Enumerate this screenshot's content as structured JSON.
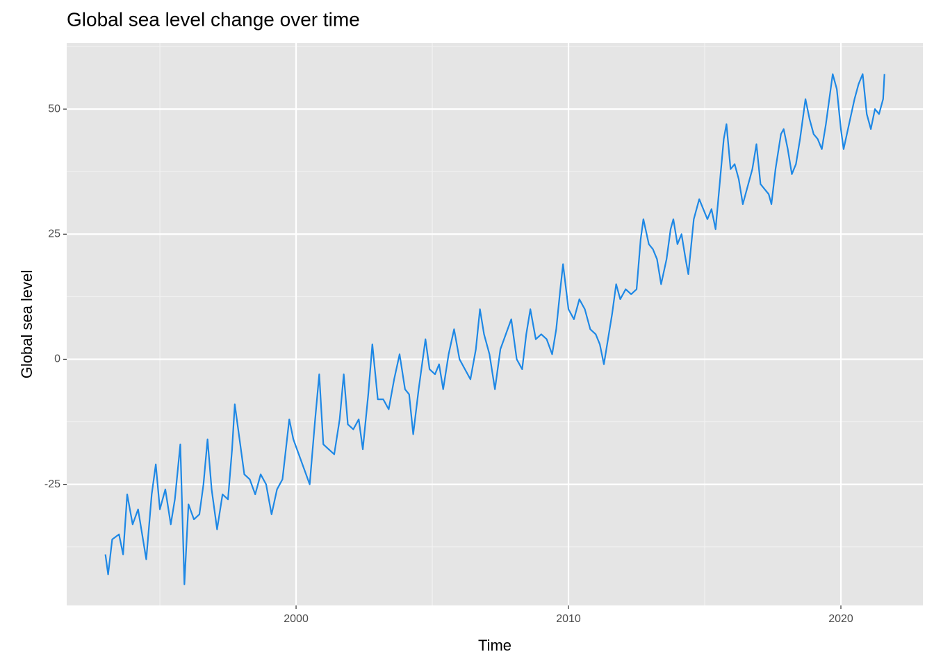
{
  "chart_data": {
    "type": "line",
    "title": "Global sea level change over time",
    "x_label": "Time",
    "y_label": "Global sea level",
    "x": [
      1993.0,
      1993.1,
      1993.25,
      1993.5,
      1993.65,
      1993.8,
      1994.0,
      1994.2,
      1994.35,
      1994.5,
      1994.7,
      1994.85,
      1995.0,
      1995.2,
      1995.4,
      1995.55,
      1995.75,
      1995.9,
      1996.05,
      1996.25,
      1996.45,
      1996.6,
      1996.75,
      1996.9,
      1997.1,
      1997.3,
      1997.5,
      1997.65,
      1997.75,
      1997.95,
      1998.1,
      1998.3,
      1998.5,
      1998.7,
      1998.9,
      1999.1,
      1999.3,
      1999.5,
      1999.75,
      1999.9,
      2000.1,
      2000.3,
      2000.5,
      2000.7,
      2000.85,
      2001.0,
      2001.2,
      2001.4,
      2001.6,
      2001.75,
      2001.9,
      2002.1,
      2002.3,
      2002.45,
      2002.65,
      2002.8,
      2003.0,
      2003.2,
      2003.4,
      2003.6,
      2003.8,
      2004.0,
      2004.15,
      2004.3,
      2004.5,
      2004.75,
      2004.9,
      2005.1,
      2005.25,
      2005.4,
      2005.6,
      2005.8,
      2006.0,
      2006.2,
      2006.4,
      2006.6,
      2006.75,
      2006.9,
      2007.1,
      2007.3,
      2007.5,
      2007.7,
      2007.9,
      2008.1,
      2008.3,
      2008.45,
      2008.6,
      2008.8,
      2009.0,
      2009.2,
      2009.4,
      2009.55,
      2009.7,
      2009.8,
      2010.0,
      2010.2,
      2010.4,
      2010.6,
      2010.8,
      2011.0,
      2011.15,
      2011.3,
      2011.45,
      2011.6,
      2011.75,
      2011.9,
      2012.1,
      2012.3,
      2012.5,
      2012.65,
      2012.75,
      2012.95,
      2013.1,
      2013.25,
      2013.4,
      2013.6,
      2013.75,
      2013.85,
      2014.0,
      2014.15,
      2014.3,
      2014.4,
      2014.6,
      2014.8,
      2014.95,
      2015.1,
      2015.25,
      2015.4,
      2015.55,
      2015.7,
      2015.8,
      2015.95,
      2016.1,
      2016.25,
      2016.4,
      2016.6,
      2016.75,
      2016.9,
      2017.05,
      2017.2,
      2017.35,
      2017.45,
      2017.6,
      2017.8,
      2017.9,
      2018.05,
      2018.2,
      2018.35,
      2018.5,
      2018.7,
      2018.85,
      2019.0,
      2019.15,
      2019.3,
      2019.45,
      2019.6,
      2019.7,
      2019.85,
      2020.0,
      2020.1,
      2020.3,
      2020.5,
      2020.65,
      2020.8,
      2020.95,
      2021.1,
      2021.25,
      2021.4,
      2021.55,
      2021.6
    ],
    "series": [
      {
        "color": "#1e88e5",
        "values": [
          -39,
          -43,
          -36,
          -35,
          -39,
          -27,
          -33,
          -30,
          -35,
          -40,
          -27,
          -21,
          -30,
          -26,
          -33,
          -28,
          -17,
          -45,
          -29,
          -32,
          -31,
          -25,
          -16,
          -26,
          -34,
          -27,
          -28,
          -18,
          -9,
          -17,
          -23,
          -24,
          -27,
          -23,
          -25,
          -31,
          -26,
          -24,
          -12,
          -16,
          -19,
          -22,
          -25,
          -12,
          -3,
          -17,
          -18,
          -19,
          -12,
          -3,
          -13,
          -14,
          -12,
          -18,
          -7,
          3,
          -8,
          -8,
          -10,
          -4,
          1,
          -6,
          -7,
          -15,
          -6,
          4,
          -2,
          -3,
          -1,
          -6,
          1,
          6,
          0,
          -2,
          -4,
          2,
          10,
          5,
          1,
          -6,
          2,
          5,
          8,
          0,
          -2,
          5,
          10,
          4,
          5,
          4,
          1,
          6,
          14,
          19,
          10,
          8,
          12,
          10,
          6,
          5,
          3,
          -1,
          4,
          9,
          15,
          12,
          14,
          13,
          14,
          24,
          28,
          23,
          22,
          20,
          15,
          20,
          26,
          28,
          23,
          25,
          20,
          17,
          28,
          32,
          30,
          28,
          30,
          26,
          35,
          44,
          47,
          38,
          39,
          36,
          31,
          35,
          38,
          43,
          35,
          34,
          33,
          31,
          38,
          45,
          46,
          42,
          37,
          39,
          44,
          52,
          48,
          45,
          44,
          42,
          47,
          53,
          57,
          54,
          46,
          42,
          47,
          52,
          55,
          57,
          49,
          46,
          50,
          49,
          52,
          57
        ]
      }
    ],
    "xlim": [
      1991.58,
      2023.01
    ],
    "xticks": [
      2000,
      2010,
      2020
    ],
    "ylim": [
      -49.2,
      63.2
    ],
    "yticks": [
      -25,
      0,
      25,
      50
    ],
    "grid": true
  }
}
